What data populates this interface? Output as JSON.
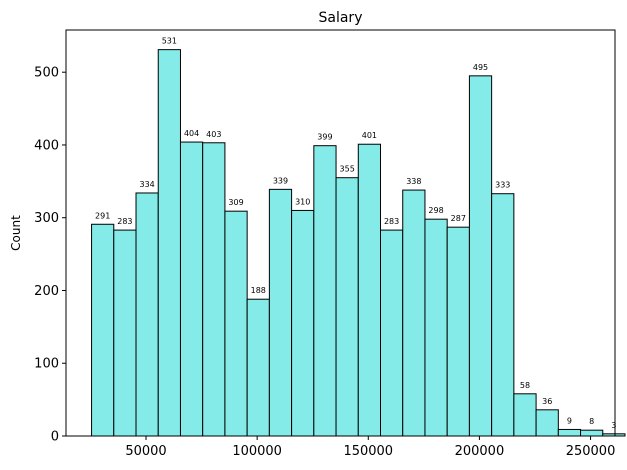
{
  "chart_data": {
    "type": "bar",
    "title": "Salary",
    "xlabel": "",
    "ylabel": "Count",
    "bar_color": "#85ebe9",
    "edge_color": "#000000",
    "bin_start": 25500,
    "bin_width": 10000,
    "values": [
      291,
      283,
      334,
      531,
      404,
      403,
      309,
      188,
      339,
      310,
      399,
      355,
      401,
      283,
      338,
      298,
      287,
      495,
      333,
      58,
      36,
      9,
      8,
      3
    ],
    "value_labels": [
      "291",
      "283",
      "334",
      "531",
      "404",
      "403",
      "309",
      "188",
      "339",
      "310",
      "399",
      "355",
      "401",
      "283",
      "338",
      "298",
      "287",
      "495",
      "333",
      "58",
      "36",
      "9",
      "8",
      "3"
    ],
    "xlim": [
      14000,
      261000
    ],
    "ylim": [
      0,
      558
    ],
    "x_ticks": [
      50000,
      100000,
      150000,
      200000,
      250000
    ],
    "x_tick_labels": [
      "50000",
      "100000",
      "150000",
      "200000",
      "250000"
    ],
    "y_ticks": [
      0,
      100,
      200,
      300,
      400,
      500
    ],
    "y_tick_labels": [
      "0",
      "100",
      "200",
      "300",
      "400",
      "500"
    ],
    "grid": false,
    "legend": "none"
  }
}
